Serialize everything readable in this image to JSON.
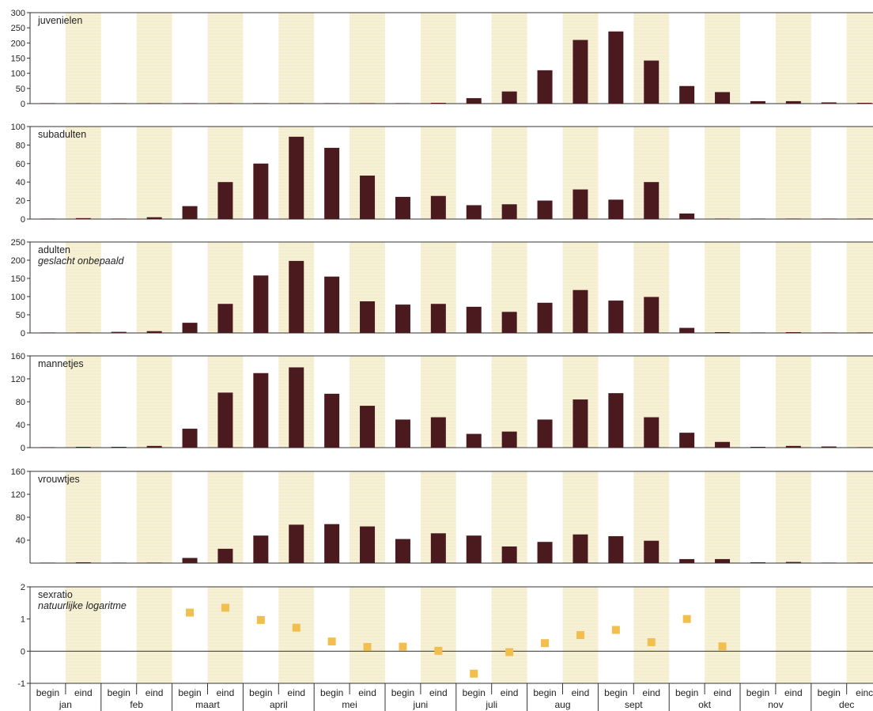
{
  "colors": {
    "bar": "#4a1a1f",
    "marker": "#f2bf4e",
    "stripe": "#f6f1d6",
    "stripe_line": "#ece3b8",
    "axis": "#333333",
    "text": "#222222"
  },
  "chart_data": [
    {
      "type": "bar",
      "title": "juvenielen",
      "subtitle": "",
      "ylim": [
        0,
        300
      ],
      "yticks": [
        "0",
        "50",
        "100",
        "150",
        "200",
        "250",
        "300"
      ],
      "values": [
        0,
        0,
        0,
        0,
        0,
        0,
        0,
        0,
        0,
        0,
        0,
        2,
        18,
        40,
        110,
        210,
        238,
        142,
        58,
        38,
        8,
        8,
        4,
        2
      ]
    },
    {
      "type": "bar",
      "title": "subadulten",
      "subtitle": "",
      "ylim": [
        0,
        100
      ],
      "yticks": [
        "0",
        "20",
        "40",
        "60",
        "80",
        "100"
      ],
      "values": [
        0,
        1,
        0,
        2,
        14,
        40,
        60,
        89,
        77,
        47,
        24,
        25,
        15,
        16,
        20,
        32,
        21,
        40,
        6,
        0,
        0,
        0,
        0,
        0
      ]
    },
    {
      "type": "bar",
      "title": "adulten",
      "subtitle": "geslacht onbepaald",
      "ylim": [
        0,
        250
      ],
      "yticks": [
        "0",
        "50",
        "100",
        "150",
        "200",
        "250"
      ],
      "values": [
        0,
        0,
        3,
        5,
        28,
        80,
        158,
        198,
        155,
        87,
        78,
        80,
        72,
        58,
        83,
        118,
        89,
        99,
        14,
        2,
        0,
        1,
        0,
        0
      ]
    },
    {
      "type": "bar",
      "title": "mannetjes",
      "subtitle": "",
      "ylim": [
        0,
        160
      ],
      "yticks": [
        "0",
        "40",
        "80",
        "120",
        "160"
      ],
      "values": [
        0,
        1,
        1,
        3,
        33,
        96,
        130,
        140,
        94,
        73,
        49,
        53,
        24,
        28,
        49,
        84,
        95,
        53,
        26,
        10,
        1,
        3,
        2,
        0
      ]
    },
    {
      "type": "bar",
      "title": "vrouwtjes",
      "subtitle": "",
      "ylim": [
        0,
        160
      ],
      "yticks": [
        "40",
        "80",
        "120",
        "160"
      ],
      "values": [
        0,
        1,
        0,
        0,
        9,
        25,
        48,
        67,
        68,
        64,
        42,
        52,
        48,
        29,
        37,
        50,
        47,
        39,
        7,
        7,
        1,
        2,
        0,
        0
      ]
    },
    {
      "type": "scatter",
      "title": "sexratio",
      "subtitle": "natuurlijke logaritme",
      "ylim": [
        -1,
        2
      ],
      "yticks": [
        "-1",
        "0",
        "1",
        "2"
      ],
      "values": [
        null,
        null,
        null,
        null,
        1.2,
        1.35,
        0.97,
        0.73,
        0.3,
        0.13,
        0.14,
        0.01,
        -0.7,
        -0.03,
        0.25,
        0.5,
        0.66,
        0.28,
        1.0,
        0.15,
        null,
        null,
        null,
        null
      ]
    }
  ],
  "x_axis": {
    "halves": [
      "begin",
      "eind"
    ],
    "months": [
      "jan",
      "feb",
      "maart",
      "april",
      "mei",
      "juni",
      "juli",
      "aug",
      "sept",
      "okt",
      "nov",
      "dec"
    ],
    "last_half_label": "einc"
  }
}
